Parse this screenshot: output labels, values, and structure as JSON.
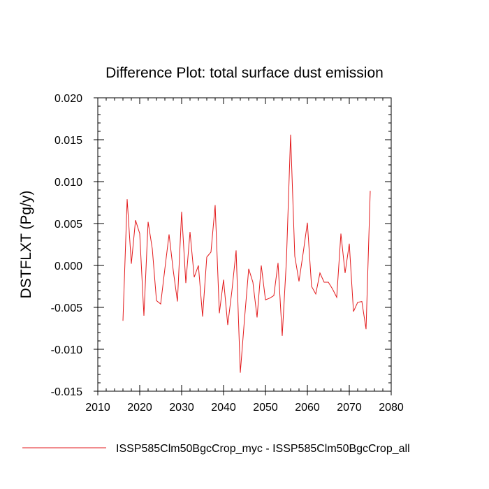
{
  "chart_data": {
    "type": "line",
    "title": "Difference Plot: total surface dust emission",
    "ylabel": "DSTFLXT  (Pg/y)",
    "xlabel": "",
    "xlim": [
      2010,
      2080
    ],
    "ylim": [
      -0.015,
      0.02
    ],
    "x_ticks": [
      2010,
      2020,
      2030,
      2040,
      2050,
      2060,
      2070,
      2080
    ],
    "x_tick_labels": [
      "2010",
      "2020",
      "2030",
      "2040",
      "2050",
      "2060",
      "2070",
      "2080"
    ],
    "y_ticks": [
      -0.015,
      -0.01,
      -0.005,
      0.0,
      0.005,
      0.01,
      0.015,
      0.02
    ],
    "y_tick_labels": [
      "-0.015",
      "-0.010",
      "-0.005",
      "0.000",
      "0.005",
      "0.010",
      "0.015",
      "0.020"
    ],
    "grid": false,
    "legend_position": "bottom-left",
    "series": [
      {
        "name": "ISSP585Clm50BgcCrop_myc - ISSP585Clm50BgcCrop_all",
        "color": "#e31a1c",
        "x": [
          2016,
          2017,
          2018,
          2019,
          2020,
          2021,
          2022,
          2023,
          2024,
          2025,
          2026,
          2027,
          2028,
          2029,
          2030,
          2031,
          2032,
          2033,
          2034,
          2035,
          2036,
          2037,
          2038,
          2039,
          2040,
          2041,
          2042,
          2043,
          2044,
          2045,
          2046,
          2047,
          2048,
          2049,
          2050,
          2051,
          2052,
          2053,
          2054,
          2055,
          2056,
          2057,
          2058,
          2059,
          2060,
          2061,
          2062,
          2063,
          2064,
          2065,
          2066,
          2067,
          2068,
          2069,
          2070,
          2071,
          2072,
          2073,
          2074,
          2075
        ],
        "y": [
          -0.0066,
          0.0079,
          0.0002,
          0.0054,
          0.0038,
          -0.006,
          0.0052,
          0.002,
          -0.0042,
          -0.0046,
          -0.0004,
          0.0037,
          -0.0006,
          -0.0043,
          0.0064,
          -0.0021,
          0.004,
          -0.0014,
          0.0,
          -0.0061,
          0.001,
          0.0016,
          0.0072,
          -0.0057,
          -0.0017,
          -0.0071,
          -0.003,
          0.0018,
          -0.0128,
          -0.0064,
          -0.0004,
          -0.002,
          -0.0062,
          0.0,
          -0.0041,
          -0.0039,
          -0.0036,
          0.0003,
          -0.0084,
          0.0006,
          0.0156,
          0.0011,
          -0.0019,
          0.0015,
          0.0051,
          -0.0025,
          -0.0034,
          -0.0009,
          -0.002,
          -0.002,
          -0.0028,
          -0.0038,
          0.0038,
          -0.0009,
          0.0026,
          -0.0055,
          -0.0044,
          -0.0043,
          -0.0076,
          0.0089
        ]
      }
    ]
  }
}
